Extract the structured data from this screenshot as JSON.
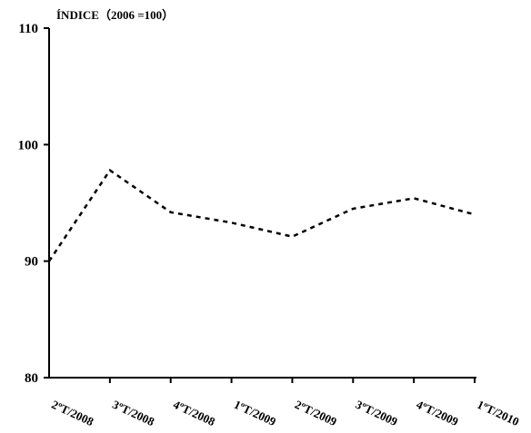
{
  "chart_data": {
    "type": "line",
    "title": "",
    "ylabel": "ÍNDICE（2006 =100）",
    "xlabel": "",
    "categories": [
      "2ºT/2008",
      "3ºT/2008",
      "4ºT/2008",
      "1ºT/2009",
      "2ºT/2009",
      "3ºT/2009",
      "4ºT/2009",
      "1ºT/2010"
    ],
    "series": [
      {
        "values": [
          90.0,
          97.8,
          94.2,
          93.3,
          92.1,
          94.5,
          95.4,
          94.0
        ]
      }
    ],
    "ylim": [
      80,
      110
    ],
    "yticks": [
      80,
      90,
      100,
      110
    ],
    "grid": false,
    "line_style": "dashed",
    "line_color": "#000000"
  }
}
